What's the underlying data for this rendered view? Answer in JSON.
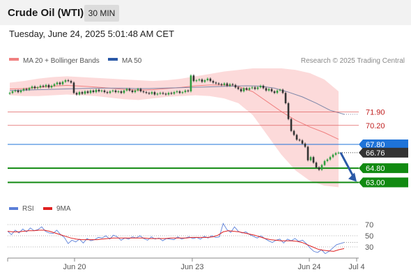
{
  "header": {
    "title": "Crude Oil (WTI)",
    "timeframe": "30 MIN",
    "timestamp": "Tuesday, June 24, 2025 5:01:48 AM CET"
  },
  "legend": {
    "ma20_label": "MA 20 + Bollinger Bands",
    "ma50_label": "MA 50",
    "copyright": "Research © 2025 Trading Central"
  },
  "colors": {
    "ma20": "#f08080",
    "band_fill": "#fbd3d3",
    "ma50": "#7c86a8",
    "resistance_line": "#e06060",
    "pivot": "#1e73d8",
    "support": "#118a11",
    "candle_up": "#2e9e3e",
    "candle_down": "#333333",
    "current_price_bg": "#333333",
    "arrow": "#2b59a7",
    "rsi": "#5b7fd8",
    "rsi_ma": "#e02020"
  },
  "rsi_legend": {
    "rsi_label": "RSI",
    "ma_label": "9MA"
  },
  "chart_data": {
    "type": "candlestick",
    "timeframe": "30 MIN",
    "x_tick_labels": [
      "Jun 20",
      "Jun 23",
      "Jun 24",
      "Jul 4"
    ],
    "price_axis": {
      "ylim": [
        61.2,
        77.4
      ]
    },
    "levels": [
      {
        "name": "resistance-2",
        "value": 71.9,
        "label": "71.90",
        "style": "thin-red"
      },
      {
        "name": "resistance-1",
        "value": 70.2,
        "label": "70.20",
        "style": "thin-red"
      },
      {
        "name": "pivot",
        "value": 67.8,
        "label": "67.80",
        "style": "blue-tag"
      },
      {
        "name": "support-1",
        "value": 64.8,
        "label": "64.80",
        "style": "green-tag"
      },
      {
        "name": "support-2",
        "value": 63.0,
        "label": "63.00",
        "style": "green-tag"
      }
    ],
    "current_price": {
      "value": 66.76,
      "label": "66.76"
    },
    "forecast": {
      "direction": "down",
      "from": 66.76,
      "to": 63.0
    },
    "close_series": [
      74.3,
      74.5,
      74.6,
      74.4,
      74.6,
      74.8,
      74.7,
      74.9,
      75.1,
      74.9,
      75.0,
      75.2,
      75.1,
      75.3,
      75.0,
      75.2,
      75.4,
      75.6,
      75.4,
      75.7,
      75.9,
      75.8,
      75.6,
      74.3,
      74.1,
      74.4,
      74.2,
      74.5,
      74.3,
      74.6,
      74.4,
      74.7,
      74.5,
      74.6,
      74.4,
      74.3,
      74.5,
      74.6,
      74.4,
      74.5,
      74.3,
      74.6,
      74.8,
      74.6,
      74.4,
      74.6,
      74.8,
      74.5,
      74.4,
      74.3,
      74.2,
      74.4,
      74.1,
      74.2,
      74.3,
      74.2,
      74.1,
      74.3,
      74.2,
      74.4,
      74.5,
      74.3,
      74.4,
      74.6,
      74.5,
      76.5,
      75.8,
      75.9,
      76.0,
      75.7,
      75.9,
      76.1,
      75.8,
      75.6,
      75.5,
      75.4,
      75.3,
      75.5,
      75.2,
      75.4,
      75.3,
      75.0,
      74.8,
      74.5,
      74.9,
      74.7,
      74.9,
      75.0,
      74.8,
      75.0,
      75.2,
      74.9,
      74.6,
      74.8,
      74.5,
      74.3,
      74.6,
      74.7,
      74.3,
      73.0,
      71.0,
      69.5,
      69.0,
      68.4,
      68.3,
      67.9,
      67.5,
      65.8,
      66.2,
      65.5,
      64.9,
      64.6,
      65.2,
      65.7,
      65.9,
      66.2,
      66.5,
      66.7,
      66.76
    ],
    "bollinger_upper": [
      75.6,
      75.8,
      76.1,
      76.3,
      76.4,
      76.3,
      76.2,
      76.1,
      76.0,
      75.9,
      75.8,
      75.9,
      76.1,
      76.4,
      76.7,
      77.0,
      77.2,
      77.4,
      77.4,
      77.4,
      77.2,
      76.8,
      76.0,
      74.5
    ],
    "bollinger_lower": [
      74.0,
      73.9,
      73.9,
      74.0,
      74.1,
      74.0,
      73.9,
      73.7,
      73.5,
      73.4,
      73.6,
      73.8,
      73.9,
      74.0,
      73.9,
      73.6,
      73.0,
      71.5,
      69.0,
      66.5,
      64.5,
      63.2,
      62.6,
      62.4
    ],
    "ma50": [
      74.6,
      74.65,
      74.7,
      74.75,
      74.8,
      74.85,
      74.9,
      74.9,
      74.9,
      74.85,
      74.85,
      74.9,
      74.95,
      75.0,
      75.05,
      75.1,
      75.15,
      75.2,
      75.15,
      74.9,
      74.4,
      73.8,
      73.0,
      72.1,
      71.6
    ],
    "rsi": {
      "levels": [
        30,
        50,
        70
      ],
      "ylim": [
        0,
        100
      ],
      "rsi_values": [
        58,
        52,
        60,
        55,
        62,
        57,
        64,
        59,
        61,
        66,
        58,
        55,
        54,
        60,
        52,
        47,
        36,
        42,
        39,
        44,
        37,
        45,
        41,
        43,
        47,
        46,
        50,
        44,
        51,
        48,
        42,
        46,
        44,
        48,
        46,
        50,
        45,
        42,
        48,
        44,
        46,
        41,
        45,
        44,
        43,
        48,
        44,
        46,
        48,
        45,
        47,
        44,
        49,
        46,
        50,
        47,
        48,
        72,
        61,
        56,
        66,
        58,
        55,
        57,
        52,
        49,
        46,
        50,
        45,
        41,
        38,
        42,
        44,
        37,
        44,
        41,
        45,
        40,
        42,
        36,
        28,
        22,
        20,
        25,
        18,
        22,
        28,
        34,
        36,
        38
      ],
      "ma_values": [
        58,
        57,
        57,
        58,
        59,
        59,
        60,
        60,
        58,
        55,
        52,
        49,
        46,
        44,
        43,
        43,
        43,
        43,
        44,
        45,
        46,
        46,
        46,
        46,
        46,
        46,
        46,
        45,
        45,
        45,
        45,
        46,
        46,
        46,
        46,
        47,
        47,
        47,
        47,
        48,
        51,
        57,
        59,
        58,
        57,
        55,
        53,
        51,
        48,
        45,
        43,
        42,
        41,
        41,
        41,
        40,
        38,
        34,
        30,
        26,
        24,
        23,
        22,
        25,
        27
      ]
    }
  }
}
